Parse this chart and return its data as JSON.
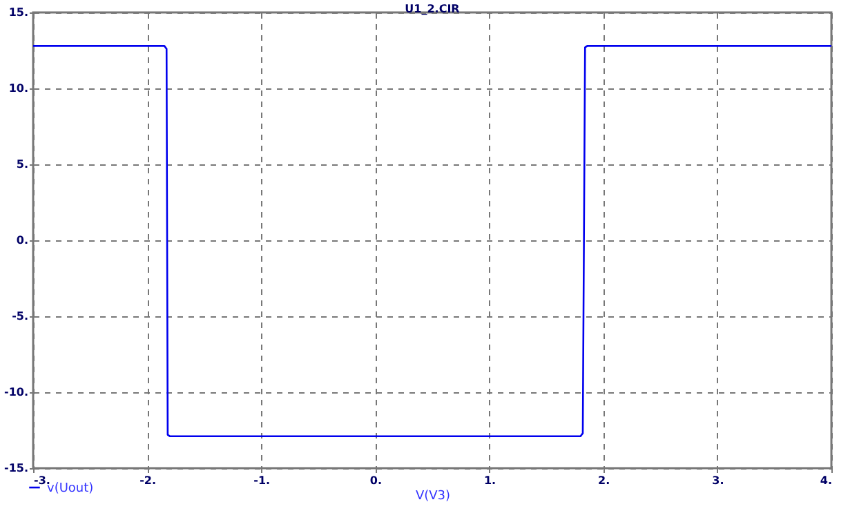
{
  "chart_data": {
    "type": "line",
    "title": "U1_2.CIR",
    "xlabel": "V(V3)",
    "legend": "bottom left",
    "series": [
      {
        "name": "v(Uout)",
        "color": "#0000ee",
        "x": [
          -3,
          -1.85,
          -1.83,
          -1.82,
          -1.8,
          1.8,
          1.82,
          1.84,
          1.86,
          4
        ],
        "values": [
          12.8,
          12.8,
          12.6,
          -12.8,
          -12.9,
          -12.9,
          -12.7,
          12.7,
          12.8,
          12.8
        ]
      }
    ],
    "xlim": [
      -3,
      4
    ],
    "ylim": [
      -15,
      15
    ],
    "xticks": [
      {
        "value": -3,
        "label": "-3."
      },
      {
        "value": -2,
        "label": "-2."
      },
      {
        "value": -1,
        "label": "-1."
      },
      {
        "value": 0,
        "label": "0."
      },
      {
        "value": 1,
        "label": "1."
      },
      {
        "value": 2,
        "label": "2."
      },
      {
        "value": 3,
        "label": "3."
      },
      {
        "value": 4,
        "label": "4."
      }
    ],
    "yticks": [
      {
        "value": -15,
        "label": "-15."
      },
      {
        "value": -10,
        "label": "-10."
      },
      {
        "value": -5,
        "label": "-5."
      },
      {
        "value": 0,
        "label": "0."
      },
      {
        "value": 5,
        "label": "5."
      },
      {
        "value": 10,
        "label": "10."
      },
      {
        "value": 15,
        "label": "15."
      }
    ],
    "grid": true,
    "line_style": "solid"
  }
}
